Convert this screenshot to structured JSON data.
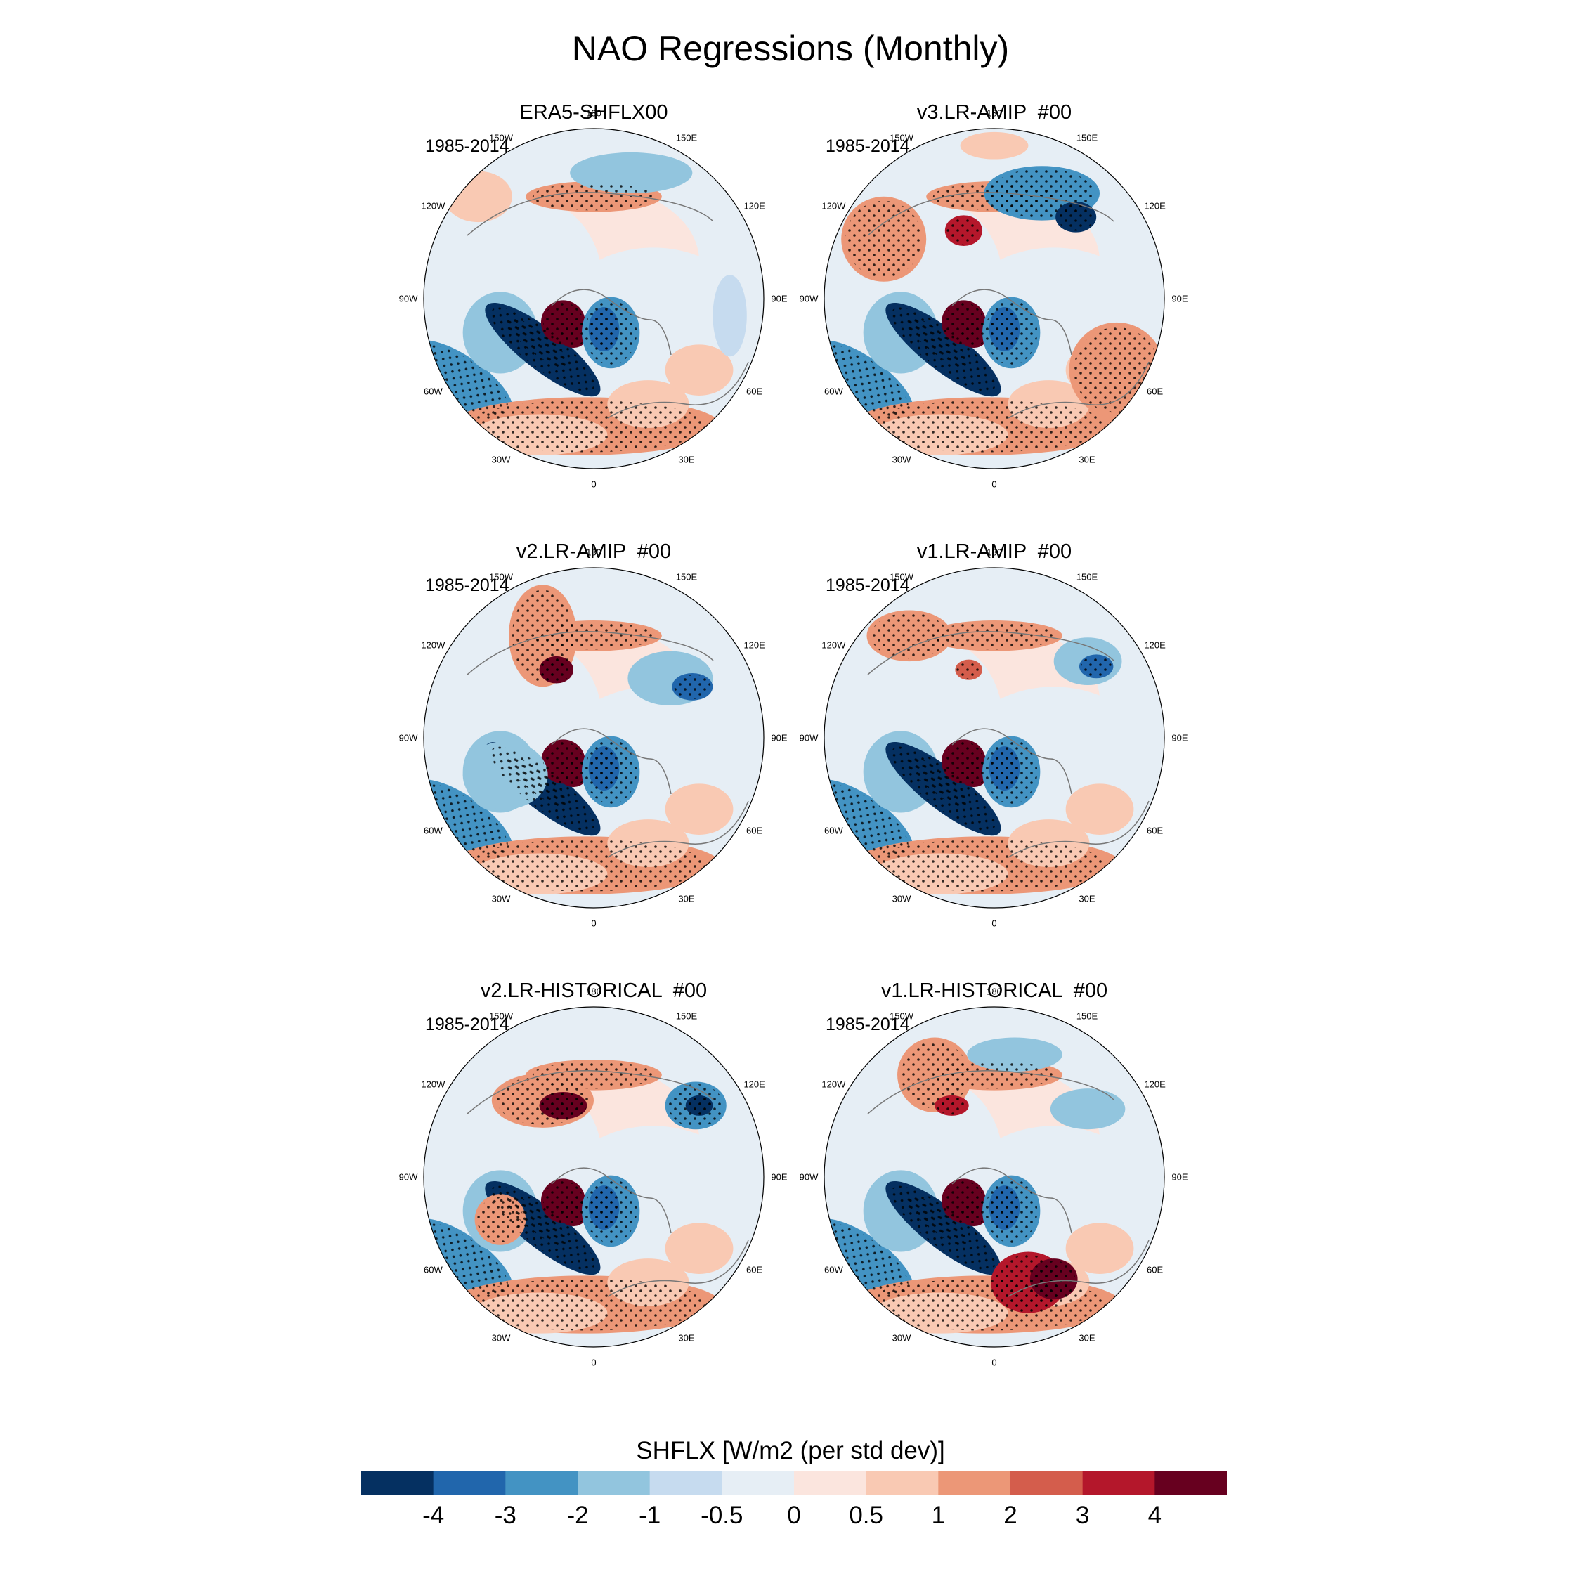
{
  "title": "NAO Regressions (Monthly)",
  "colorbar": {
    "title": "SHFLX [W/m2 (per std dev)]",
    "colors": [
      "#053061",
      "#2166ac",
      "#4393c3",
      "#92c5de",
      "#c6dbef",
      "#e6eef5",
      "#fbe5de",
      "#f9c9b3",
      "#ec9777",
      "#d45d4c",
      "#b4172b",
      "#67001f"
    ],
    "tick_labels": [
      "-4",
      "-3",
      "-2",
      "-1",
      "-0.5",
      "0",
      "0.5",
      "1",
      "2",
      "3",
      "4"
    ],
    "tick_values": [
      -4,
      -3,
      -2,
      -1,
      -0.5,
      0,
      0.5,
      1,
      2,
      3,
      4
    ]
  },
  "map_labels": {
    "longitudes": [
      "180",
      "150E",
      "120E",
      "90E",
      "60E",
      "30E",
      "0",
      "30W",
      "60W",
      "90W",
      "120W",
      "150W"
    ],
    "projection": "north-polar-stereographic"
  },
  "panels": [
    {
      "title": "ERA5-SHFLX00",
      "period": "1985-2014"
    },
    {
      "title": "v3.LR-AMIP  #00",
      "period": "1985-2014"
    },
    {
      "title": "v2.LR-AMIP  #00",
      "period": "1985-2014"
    },
    {
      "title": "v1.LR-AMIP  #00",
      "period": "1985-2014"
    },
    {
      "title": "v2.LR-HISTORICAL  #00",
      "period": "1985-2014"
    },
    {
      "title": "v1.LR-HISTORICAL  #00",
      "period": "1985-2014"
    }
  ]
}
